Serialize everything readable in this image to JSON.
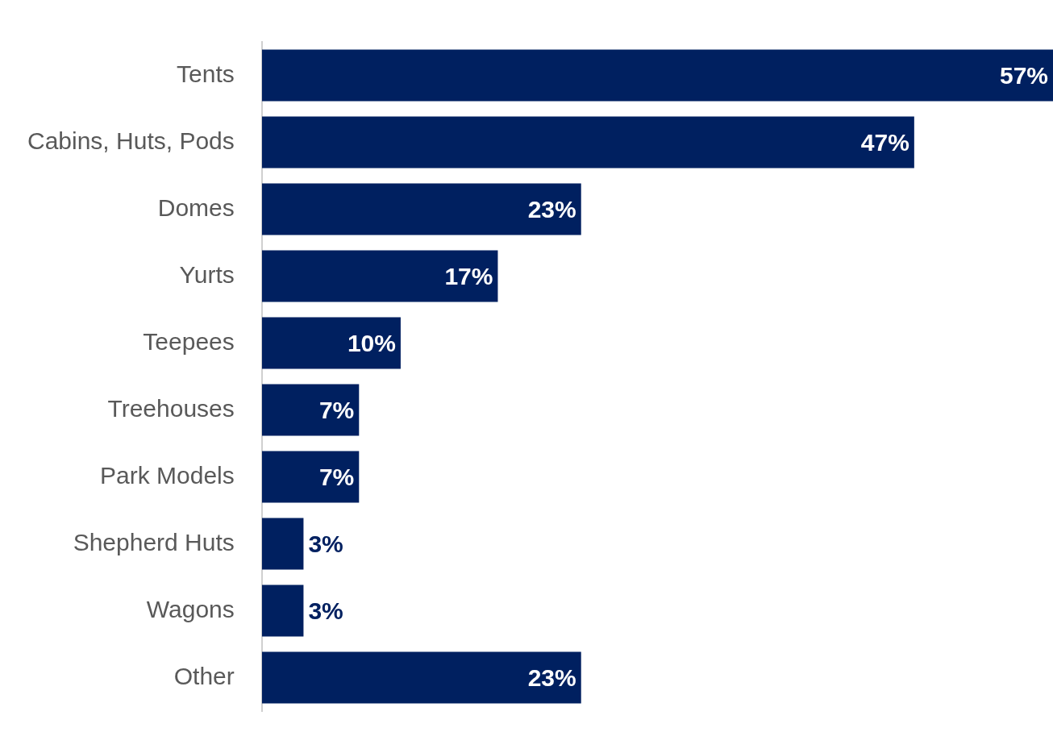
{
  "chart_data": {
    "type": "bar",
    "orientation": "horizontal",
    "categories": [
      "Tents",
      "Cabins, Huts, Pods",
      "Domes",
      "Yurts",
      "Teepees",
      "Treehouses",
      "Park Models",
      "Shepherd Huts",
      "Wagons",
      "Other"
    ],
    "values": [
      57,
      47,
      23,
      17,
      10,
      7,
      7,
      3,
      3,
      23
    ],
    "value_labels": [
      "57%",
      "47%",
      "23%",
      "17%",
      "10%",
      "7%",
      "7%",
      "3%",
      "3%",
      "23%"
    ],
    "color": "#002060",
    "legend": false
  }
}
